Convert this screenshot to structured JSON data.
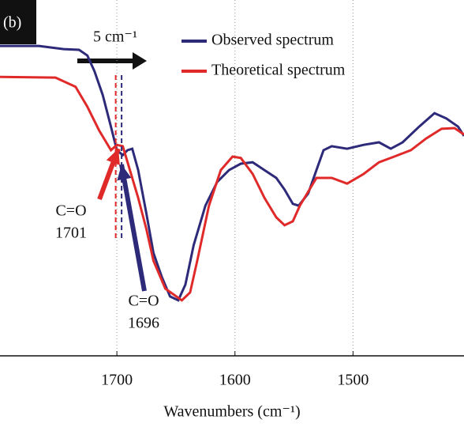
{
  "chart_data": {
    "type": "line",
    "panel_label": "(b)",
    "xlabel": "Wavenumbers (cm⁻¹)",
    "xlim": [
      1799,
      1406
    ],
    "xticks": [
      1700,
      1600,
      1500
    ],
    "ylim": [
      0,
      100
    ],
    "grid": true,
    "legend": "upper right",
    "shift_label": "5 cm⁻¹",
    "series": [
      {
        "name": "Observed spectrum",
        "color": "#2e2a7a",
        "x": [
          1799,
          1766,
          1745,
          1732,
          1725,
          1719,
          1712,
          1705,
          1700,
          1695,
          1691,
          1687,
          1682,
          1675,
          1669,
          1662,
          1655,
          1648,
          1642,
          1635,
          1625,
          1615,
          1605,
          1595,
          1585,
          1575,
          1565,
          1558,
          1551,
          1546,
          1538,
          1531,
          1525,
          1518,
          1505,
          1491,
          1478,
          1468,
          1458,
          1444,
          1431,
          1421,
          1411,
          1406
        ],
        "values": [
          87.1,
          87.1,
          86.2,
          86,
          84.4,
          80,
          73.3,
          64.4,
          57.8,
          56.4,
          57.8,
          58.2,
          52.2,
          40,
          28.9,
          22.2,
          16.7,
          15.6,
          20,
          31.1,
          42.2,
          48.9,
          52.2,
          54,
          54.4,
          52.2,
          50,
          46.7,
          42.7,
          42.2,
          45.6,
          52.2,
          57.8,
          58.9,
          58.2,
          59.3,
          60,
          58.2,
          60,
          64.4,
          68.2,
          66.7,
          64.4,
          61.8
        ]
      },
      {
        "name": "Theoretical spectrum",
        "color": "#e02a2a",
        "x": [
          1799,
          1752,
          1735,
          1725,
          1715,
          1705,
          1700,
          1695,
          1689,
          1682,
          1675,
          1669,
          1659,
          1645,
          1638,
          1632,
          1622,
          1612,
          1602,
          1595,
          1585,
          1575,
          1565,
          1558,
          1551,
          1545,
          1531,
          1518,
          1505,
          1491,
          1478,
          1465,
          1451,
          1438,
          1425,
          1414,
          1406
        ],
        "values": [
          78.4,
          78.2,
          75.6,
          70,
          63.3,
          57.8,
          59.3,
          58.9,
          52.2,
          44.4,
          35.6,
          26.7,
          18.9,
          15.6,
          17.8,
          26.7,
          42.2,
          52.2,
          56,
          55.6,
          51.1,
          44.4,
          38.9,
          36.7,
          37.8,
          42.2,
          50,
          50,
          48.4,
          51.1,
          54.4,
          56,
          57.8,
          61.1,
          63.8,
          64,
          62.2
        ]
      }
    ],
    "annotations": [
      {
        "label": "C=O",
        "value": 1701,
        "color": "#e02a2a"
      },
      {
        "label": "C=O",
        "value": 1696,
        "color": "#2e2a7a"
      }
    ]
  }
}
